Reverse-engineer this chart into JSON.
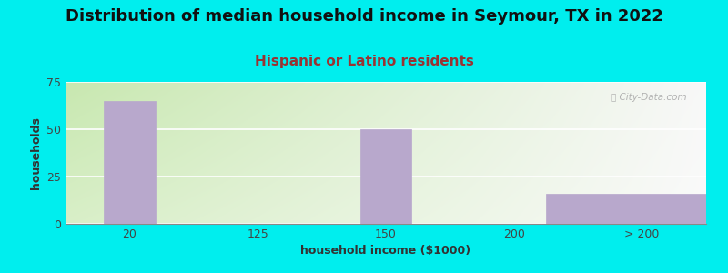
{
  "title": "Distribution of median household income in Seymour, TX in 2022",
  "subtitle": "Hispanic or Latino residents",
  "xlabel": "household income ($1000)",
  "ylabel": "households",
  "background_color": "#00EEEE",
  "bar_color": "#b8a8cc",
  "bar_edge_color": "#b8a8cc",
  "categories": [
    "20",
    "125",
    "150",
    "200",
    "> 200"
  ],
  "x_positions": [
    0,
    1,
    2,
    3,
    4
  ],
  "values": [
    65,
    0,
    50,
    0,
    16
  ],
  "bar_widths": [
    0.4,
    0.4,
    0.4,
    0.4,
    1.5
  ],
  "ylim": [
    0,
    75
  ],
  "yticks": [
    0,
    25,
    50,
    75
  ],
  "title_fontsize": 13,
  "subtitle_fontsize": 11,
  "title_color": "#111111",
  "subtitle_color": "#993333",
  "axis_label_fontsize": 9,
  "tick_fontsize": 9,
  "watermark": "ⓘ City-Data.com",
  "gradient_left": "#c8e8b0",
  "gradient_right": "#f8f8f8"
}
